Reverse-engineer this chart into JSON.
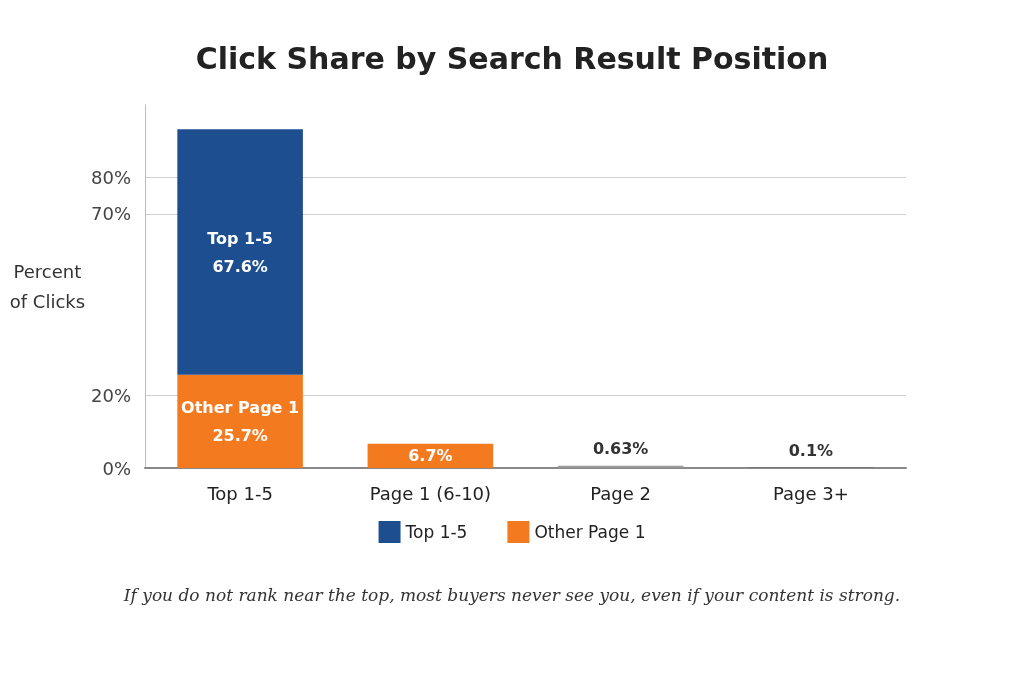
{
  "chart_data": {
    "type": "bar",
    "title": "Click Share by Search Result Position",
    "ylabel": "Percent\nof Clicks",
    "categories": [
      "Top 1-5",
      "Page 1 (6-10)",
      "Page 2",
      "Page 3+"
    ],
    "stacked": true,
    "series": [
      {
        "name": "Other Page 1",
        "color": "#f47a20",
        "values": [
          25.7,
          6.7,
          null,
          null
        ],
        "value_labels": [
          "Other Page 1\n25.7%",
          "6.7%",
          null,
          null
        ]
      },
      {
        "name": "Top 1-5",
        "color": "#1d4e8f",
        "values": [
          67.6,
          null,
          null,
          null
        ],
        "value_labels": [
          "Top 1-5\n67.6%",
          null,
          null,
          null
        ]
      },
      {
        "colors": [
          "#999999",
          "#999999",
          "#999999",
          "#3b4a5e"
        ],
        "values": [
          null,
          null,
          0.63,
          0.1
        ],
        "value_labels": [
          null,
          null,
          "0.63%",
          "0.1%"
        ]
      }
    ],
    "ylim": [
      0,
      100
    ],
    "yticks": [
      {
        "value": 0,
        "label": "0%"
      },
      {
        "value": 20,
        "label": "20%"
      },
      {
        "value": 70,
        "label": "70%"
      },
      {
        "value": 80,
        "label": "80%"
      }
    ],
    "grid": "y",
    "legend": "bottom",
    "annotations": [
      "If you do not rank near the top, most buyers never see you, even if your content is strong."
    ]
  }
}
